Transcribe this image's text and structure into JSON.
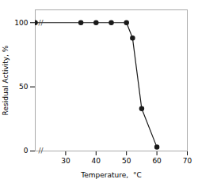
{
  "chart_data": {
    "type": "line",
    "xlabel": "Temperature,  °C",
    "ylabel": "Residual Activity, %",
    "x": [
      20,
      35,
      40,
      45,
      50,
      52,
      55,
      60
    ],
    "values": [
      100,
      100,
      100,
      100,
      100,
      88,
      33,
      3
    ],
    "color": "#1a1a1a",
    "marker": "circle",
    "xlim": [
      20,
      70
    ],
    "ylim": [
      0,
      110
    ],
    "xticks": [
      30,
      40,
      50,
      60,
      70
    ],
    "yticks": [
      0,
      50,
      100
    ],
    "annotations": [
      {
        "text": "//",
        "y": 100
      },
      {
        "text": "//",
        "y": 0
      }
    ]
  }
}
